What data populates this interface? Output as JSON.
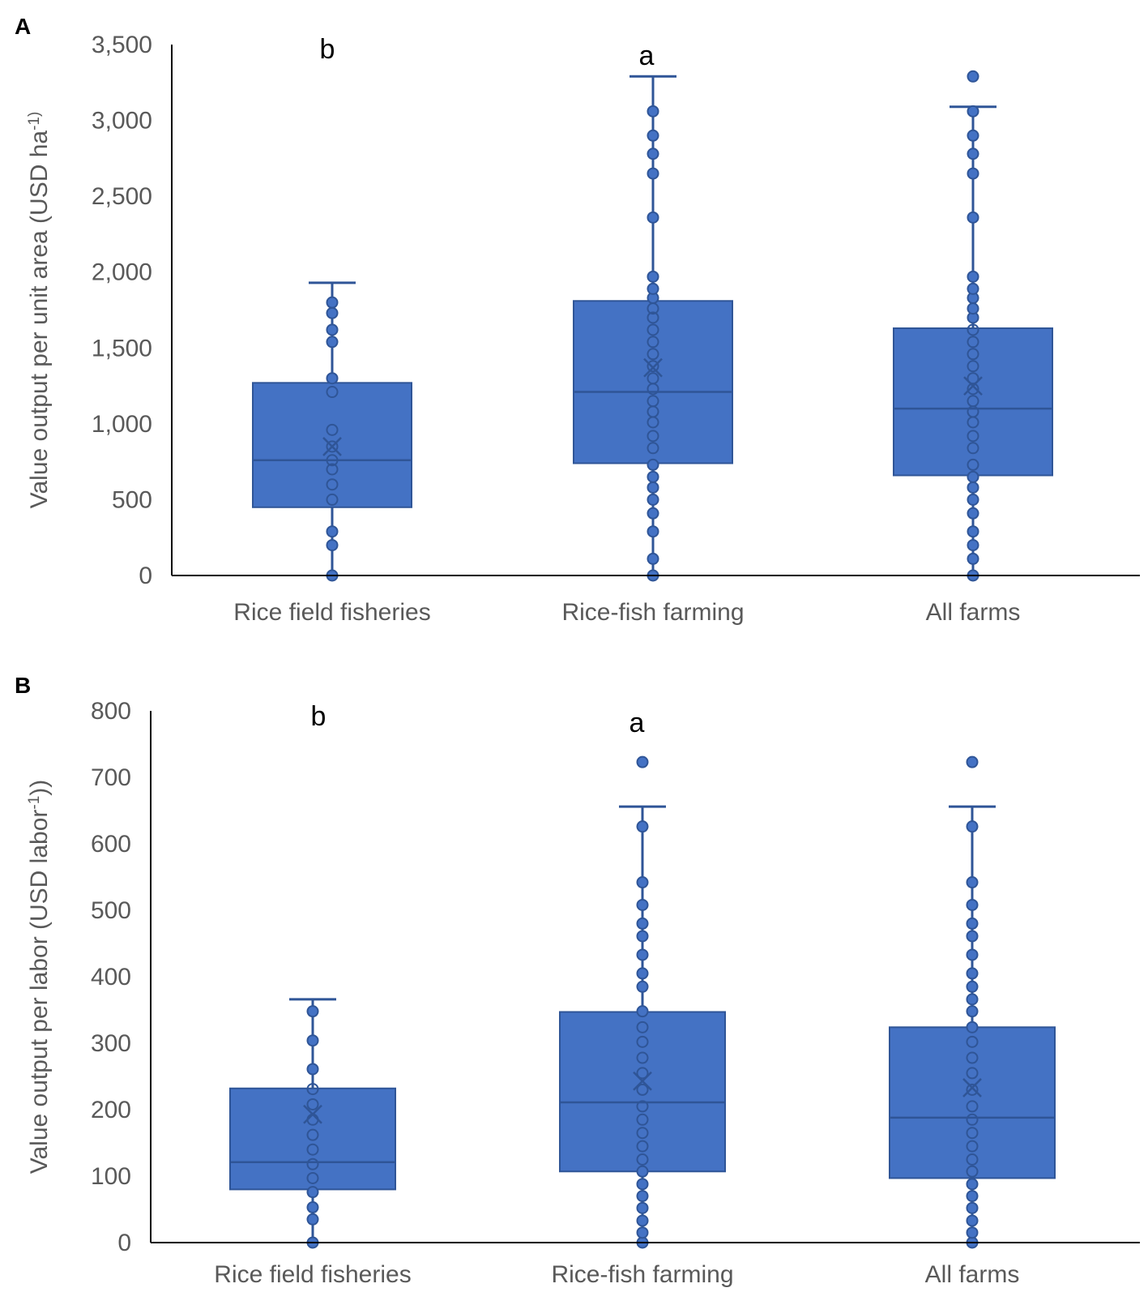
{
  "colors": {
    "box_fill": "#4472C4",
    "box_edge": "#2F5597",
    "axis": "#000000",
    "text": "#595959"
  },
  "chart_data": [
    {
      "type": "box",
      "panel_label": "A",
      "ylabel": "Value output per unit area (USD ha",
      "ylabel_sup": "-1)",
      "ylabel_tail": "",
      "ylim": [
        0,
        3500
      ],
      "yticks": [
        0,
        500,
        1000,
        1500,
        2000,
        2500,
        3000,
        3500
      ],
      "ytick_labels": [
        "0",
        "500",
        "1,000",
        "1,500",
        "2,000",
        "2,500",
        "3,000",
        "3,500"
      ],
      "categories": [
        "Rice field fisheries",
        "Rice-fish farming",
        "All farms"
      ],
      "significance": [
        "b",
        "a",
        ""
      ],
      "boxes": [
        {
          "category": "Rice field fisheries",
          "min": 0,
          "q1": 450,
          "median": 760,
          "q3": 1270,
          "max": 1930,
          "mean": 850,
          "points": [
            0,
            200,
            290,
            500,
            600,
            700,
            760,
            850,
            960,
            1210,
            1300,
            1540,
            1620,
            1730,
            1800
          ],
          "outliers": []
        },
        {
          "category": "Rice-fish farming",
          "min": 0,
          "q1": 740,
          "median": 1210,
          "q3": 1810,
          "max": 3290,
          "mean": 1370,
          "points": [
            0,
            110,
            290,
            410,
            500,
            580,
            650,
            730,
            840,
            920,
            1010,
            1080,
            1150,
            1230,
            1300,
            1380,
            1460,
            1540,
            1620,
            1700,
            1760,
            1830,
            1890,
            1970,
            2360,
            2650,
            2780,
            2900,
            3060
          ],
          "outliers": []
        },
        {
          "category": "All farms",
          "min": 0,
          "q1": 660,
          "median": 1100,
          "q3": 1630,
          "max": 3090,
          "mean": 1250,
          "points": [
            0,
            110,
            200,
            290,
            410,
            500,
            580,
            650,
            730,
            840,
            920,
            1010,
            1080,
            1150,
            1230,
            1300,
            1380,
            1460,
            1540,
            1620,
            1700,
            1760,
            1830,
            1890,
            1970,
            2360,
            2650,
            2780,
            2900,
            3060
          ],
          "outliers": [
            3290
          ]
        }
      ]
    },
    {
      "type": "box",
      "panel_label": "B",
      "ylabel": "Value output per labor (USD labor",
      "ylabel_sup": "-1",
      "ylabel_tail": "))",
      "ylim": [
        0,
        800
      ],
      "yticks": [
        0,
        100,
        200,
        300,
        400,
        500,
        600,
        700,
        800
      ],
      "ytick_labels": [
        "0",
        "100",
        "200",
        "300",
        "400",
        "500",
        "600",
        "700",
        "800"
      ],
      "categories": [
        "Rice field fisheries",
        "Rice-fish farming",
        "All farms"
      ],
      "significance": [
        "b",
        "a",
        ""
      ],
      "boxes": [
        {
          "category": "Rice field fisheries",
          "min": 0,
          "q1": 80,
          "median": 121,
          "q3": 232,
          "max": 366,
          "mean": 193,
          "points": [
            0,
            35,
            53,
            76,
            97,
            118,
            140,
            162,
            185,
            208,
            231,
            261,
            304,
            348
          ],
          "outliers": []
        },
        {
          "category": "Rice-fish farming",
          "min": 0,
          "q1": 107,
          "median": 211,
          "q3": 347,
          "max": 656,
          "mean": 243,
          "points": [
            0,
            15,
            33,
            52,
            70,
            88,
            107,
            125,
            145,
            165,
            185,
            205,
            230,
            255,
            278,
            302,
            324,
            348,
            385,
            405,
            433,
            461,
            480,
            508,
            542,
            626
          ],
          "outliers": [
            723
          ]
        },
        {
          "category": "All farms",
          "min": 0,
          "q1": 97,
          "median": 188,
          "q3": 324,
          "max": 656,
          "mean": 233,
          "points": [
            0,
            15,
            33,
            52,
            70,
            88,
            107,
            125,
            145,
            165,
            185,
            205,
            230,
            255,
            278,
            302,
            324,
            348,
            366,
            385,
            405,
            433,
            461,
            480,
            508,
            542,
            626
          ],
          "outliers": [
            723
          ]
        }
      ]
    }
  ]
}
